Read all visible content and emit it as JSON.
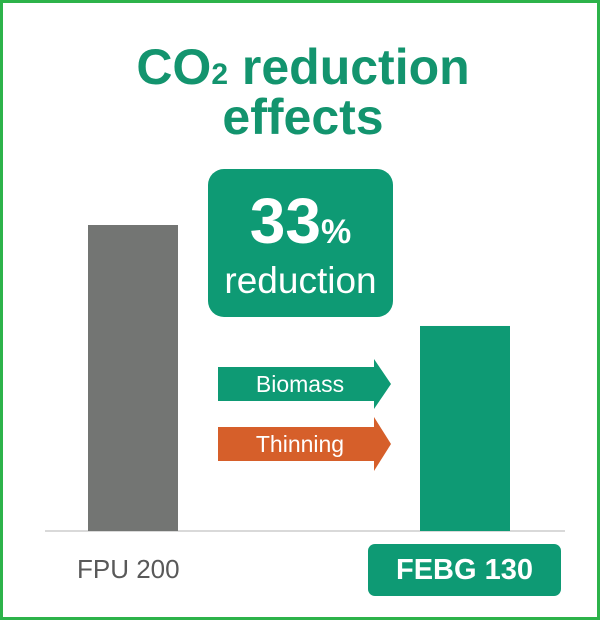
{
  "title": {
    "line1_main": "CO",
    "line1_sub": "2",
    "line1_rest": " reduction",
    "line2": "effects"
  },
  "callout": {
    "value": "33",
    "unit": "%",
    "label": "reduction"
  },
  "factors": [
    {
      "label": "Biomass",
      "color": "#0e9a74"
    },
    {
      "label": "Thinning",
      "color": "#d65f2a"
    }
  ],
  "colors": {
    "frame": "#2db34a",
    "accent": "#0e9a74",
    "grey_bar": "#737573"
  },
  "chart_data": {
    "type": "bar",
    "categories": [
      "FPU 200",
      "FEBG 130"
    ],
    "values": [
      100,
      67
    ],
    "ylim": [
      0,
      100
    ],
    "title": "CO2 reduction effects",
    "xlabel": "",
    "ylabel": "",
    "grid": false
  }
}
